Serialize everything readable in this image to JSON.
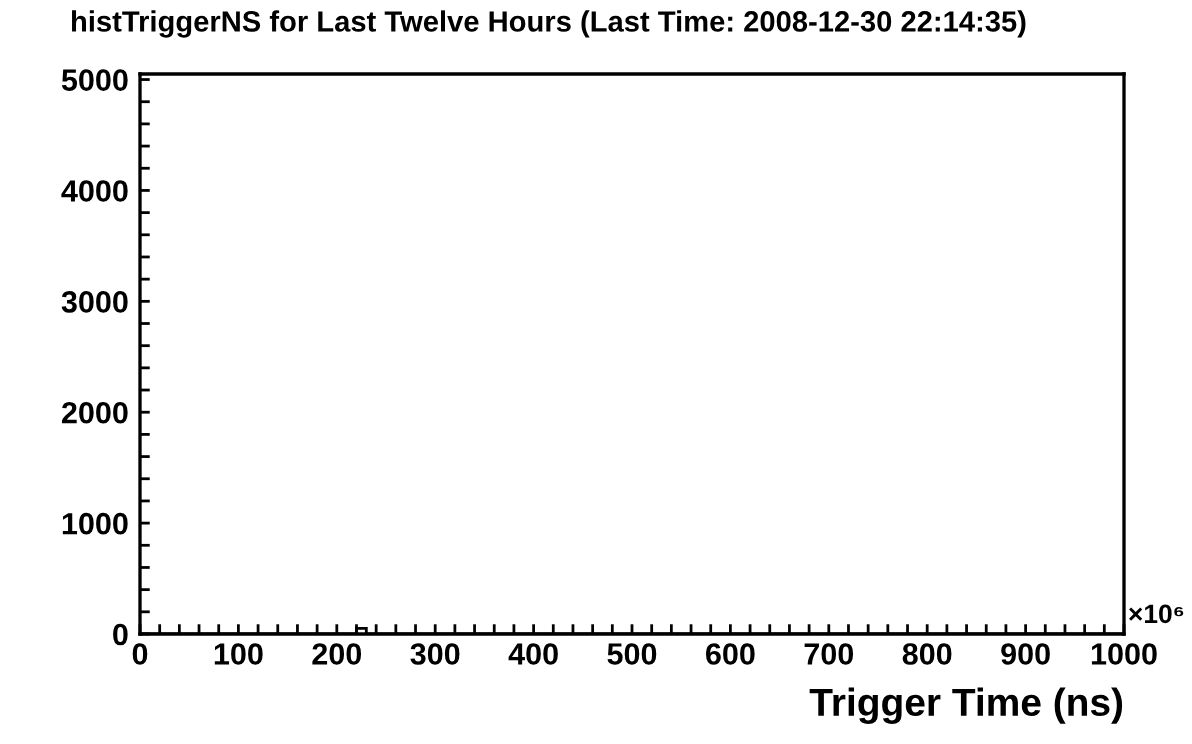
{
  "chart_data": {
    "type": "histogram",
    "title": "histTriggerNS for Last Twelve Hours (Last Time: 2008-12-30 22:14:35)",
    "xlabel": "Trigger Time (ns)",
    "annotations": [
      "×10⁶"
    ],
    "bins": [
      0,
      10,
      20,
      30,
      40,
      50,
      60,
      70,
      80,
      90,
      100,
      110,
      120,
      130,
      140,
      150,
      160,
      170,
      180,
      190,
      200,
      210,
      220,
      230,
      240,
      250,
      260,
      270,
      280,
      290,
      300,
      310,
      320,
      330,
      340,
      350,
      360,
      370,
      380,
      390,
      400,
      410,
      420,
      430,
      440,
      450,
      460,
      470,
      480,
      490,
      500,
      510,
      520,
      530,
      540,
      550,
      560,
      570,
      580,
      590,
      600,
      610,
      620,
      630,
      640,
      650,
      660,
      670,
      680,
      690,
      700,
      710,
      720,
      730,
      740,
      750,
      760,
      770,
      780,
      790,
      800,
      810,
      820,
      830,
      840,
      850,
      860,
      870,
      880,
      890,
      900,
      910,
      920,
      930,
      940,
      950,
      960,
      970,
      980,
      990,
      1000
    ],
    "values": [
      0,
      0,
      0,
      0,
      0,
      0,
      0,
      0,
      0,
      0,
      0,
      0,
      0,
      0,
      0,
      0,
      0,
      0,
      0,
      0,
      0,
      0,
      50,
      0,
      0,
      0,
      0,
      0,
      0,
      0,
      0,
      0,
      0,
      0,
      0,
      0,
      0,
      0,
      0,
      0,
      0,
      0,
      0,
      0,
      0,
      0,
      0,
      0,
      0,
      0,
      0,
      0,
      0,
      0,
      0,
      0,
      0,
      0,
      0,
      0,
      0,
      0,
      0,
      0,
      0,
      0,
      0,
      0,
      0,
      0,
      0,
      0,
      0,
      0,
      0,
      0,
      0,
      0,
      0,
      0,
      0,
      0,
      0,
      0,
      0,
      0,
      0,
      0,
      0,
      0,
      0,
      0,
      0,
      0,
      0,
      0,
      0,
      0,
      0,
      0
    ],
    "color": "#000000",
    "xlim": [
      0,
      1000
    ],
    "ylim": [
      0,
      5050
    ],
    "xticks": [
      0,
      {
        "value": 20,
        "label": null
      },
      {
        "value": 40,
        "label": null
      },
      {
        "value": 60,
        "label": null
      },
      {
        "value": 80,
        "label": null
      },
      100,
      {
        "value": 120,
        "label": null
      },
      {
        "value": 140,
        "label": null
      },
      {
        "value": 160,
        "label": null
      },
      {
        "value": 180,
        "label": null
      },
      200,
      {
        "value": 220,
        "label": null
      },
      {
        "value": 240,
        "label": null
      },
      {
        "value": 260,
        "label": null
      },
      {
        "value": 280,
        "label": null
      },
      300,
      {
        "value": 320,
        "label": null
      },
      {
        "value": 340,
        "label": null
      },
      {
        "value": 360,
        "label": null
      },
      {
        "value": 380,
        "label": null
      },
      400,
      {
        "value": 420,
        "label": null
      },
      {
        "value": 440,
        "label": null
      },
      {
        "value": 460,
        "label": null
      },
      {
        "value": 480,
        "label": null
      },
      500,
      {
        "value": 520,
        "label": null
      },
      {
        "value": 540,
        "label": null
      },
      {
        "value": 560,
        "label": null
      },
      {
        "value": 580,
        "label": null
      },
      600,
      {
        "value": 620,
        "label": null
      },
      {
        "value": 640,
        "label": null
      },
      {
        "value": 660,
        "label": null
      },
      {
        "value": 680,
        "label": null
      },
      700,
      {
        "value": 720,
        "label": null
      },
      {
        "value": 740,
        "label": null
      },
      {
        "value": 760,
        "label": null
      },
      {
        "value": 780,
        "label": null
      },
      800,
      {
        "value": 820,
        "label": null
      },
      {
        "value": 840,
        "label": null
      },
      {
        "value": 860,
        "label": null
      },
      {
        "value": 880,
        "label": null
      },
      900,
      {
        "value": 920,
        "label": null
      },
      {
        "value": 940,
        "label": null
      },
      {
        "value": 960,
        "label": null
      },
      {
        "value": 980,
        "label": null
      },
      1000
    ],
    "yticks": [
      0,
      {
        "value": 200,
        "label": null
      },
      {
        "value": 400,
        "label": null
      },
      {
        "value": 600,
        "label": null
      },
      {
        "value": 800,
        "label": null
      },
      1000,
      {
        "value": 1200,
        "label": null
      },
      {
        "value": 1400,
        "label": null
      },
      {
        "value": 1600,
        "label": null
      },
      {
        "value": 1800,
        "label": null
      },
      2000,
      {
        "value": 2200,
        "label": null
      },
      {
        "value": 2400,
        "label": null
      },
      {
        "value": 2600,
        "label": null
      },
      {
        "value": 2800,
        "label": null
      },
      3000,
      {
        "value": 3200,
        "label": null
      },
      {
        "value": 3400,
        "label": null
      },
      {
        "value": 3600,
        "label": null
      },
      {
        "value": 3800,
        "label": null
      },
      4000,
      {
        "value": 4200,
        "label": null
      },
      {
        "value": 4400,
        "label": null
      },
      {
        "value": 4600,
        "label": null
      },
      {
        "value": 4800,
        "label": null
      },
      5000
    ],
    "grid": false,
    "legend": false
  }
}
